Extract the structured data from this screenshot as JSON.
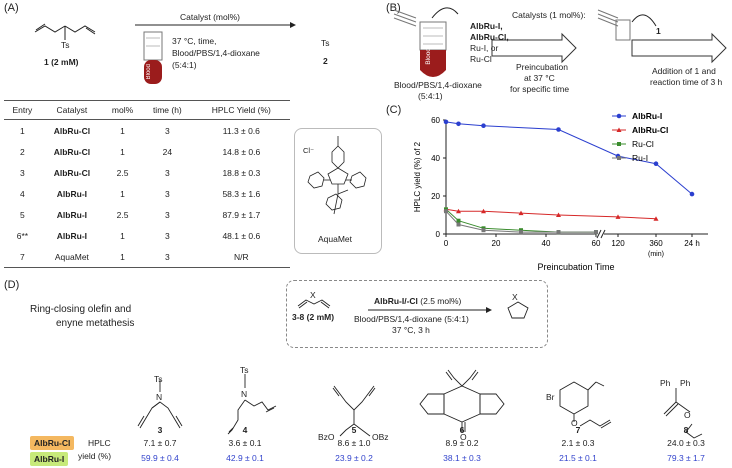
{
  "colors": {
    "albru_i": "#2b3fcf",
    "albru_cl": "#d62828",
    "ru_cl": "#3b8c2e",
    "ru_i": "#777777",
    "blood": "#9b1c1c",
    "badge_cl": "#f4b860",
    "badge_i": "#c7ea7a"
  },
  "panelA": {
    "label": "(A)",
    "substrate_label": "1 (2 mM)",
    "product_label": "2",
    "ts_label": "Ts",
    "arrow_top": "Catalyst (mol%)",
    "cond1": "37 °C, time,",
    "cond2": "Blood/PBS/1,4-dioxane",
    "cond3": "(5:4:1)",
    "blood_tube_text": "Blood",
    "table_headers": [
      "Entry",
      "Catalyst",
      "mol%",
      "time (h)",
      "HPLC Yield (%)"
    ],
    "rows": [
      [
        "1",
        "AlbRu-Cl",
        "1",
        "3",
        "11.3 ± 0.6"
      ],
      [
        "2",
        "AlbRu-Cl",
        "1",
        "24",
        "14.8 ± 0.6"
      ],
      [
        "3",
        "AlbRu-Cl",
        "2.5",
        "3",
        "18.8 ± 0.3"
      ],
      [
        "4",
        "AlbRu-I",
        "1",
        "3",
        "58.3 ± 1.6"
      ],
      [
        "5",
        "AlbRu-I",
        "2.5",
        "3",
        "87.9 ± 1.7"
      ],
      [
        "6**",
        "AlbRu-I",
        "1",
        "3",
        "48.1 ± 0.6"
      ],
      [
        "7",
        "AquaMet",
        "1",
        "3",
        "N/R"
      ]
    ],
    "aquamet_label": "AquaMet",
    "aquamet_cl": "Cl⁻"
  },
  "panelB": {
    "label": "(B)",
    "cat_line0": "Catalysts (1 mol%):",
    "cat_line1": "AlbRu-I,",
    "cat_line2": "AlbRu-Cl,",
    "cat_line3": "Ru-I, or",
    "cat_line4": "Ru-Cl",
    "blood_label": "Blood/PBS/1,4-dioxane",
    "blood_ratio": "(5:4:1)",
    "blood_tube_text": "Blood",
    "preinc1": "Preincubation",
    "preinc2": "at 37 °C",
    "preinc3": "for specific time",
    "sub_label": "1",
    "add1": "Addition of 1 and",
    "add2": "reaction time of 3 h"
  },
  "chart_data": {
    "type": "line",
    "label": "(C)",
    "ylabel": "HPLC yield (%) of 2",
    "xlabel": "Preincubation Time",
    "ylim": [
      0,
      60
    ],
    "yticks": [
      "0",
      "20",
      "40",
      "60"
    ],
    "xticks_left": [
      "0",
      "20",
      "40",
      "60"
    ],
    "xticks_right": [
      "120",
      "360",
      "24 h"
    ],
    "xtick_unit": "(min)",
    "legend_position": "top-right",
    "x": [
      "0",
      "5",
      "15",
      "30",
      "45",
      "60",
      "120",
      "360",
      "24 h"
    ],
    "series": [
      {
        "name": "AlbRu-I",
        "values": [
          59,
          58,
          57,
          null,
          55,
          null,
          41,
          37,
          21
        ]
      },
      {
        "name": "AlbRu-Cl",
        "values": [
          13,
          12,
          12,
          11,
          10,
          null,
          9,
          8,
          null
        ]
      },
      {
        "name": "Ru-Cl",
        "values": [
          13,
          7,
          3,
          2,
          1,
          1,
          null,
          null,
          null
        ]
      },
      {
        "name": "Ru-I",
        "values": [
          12,
          5,
          2,
          1,
          1,
          1,
          null,
          null,
          null
        ]
      }
    ]
  },
  "panelD": {
    "label": "(D)",
    "title1": "Ring-closing olefin and",
    "title2": "enyne metathesis",
    "scheme_sub": "3-8 (2 mM)",
    "scheme_x": "X",
    "scheme_cat": "AlbRu-I/-Cl",
    "scheme_cat_amt": "(2.5 mol%)",
    "scheme_cond1": "Blood/PBS/1,4-dioxane (5:4:1)",
    "scheme_cond2": "37 °C, 3 h",
    "row_label_cl": "AlbRu-Cl",
    "row_label_i": "AlbRu-I",
    "hplc1": "HPLC",
    "hplc2": "yield (%)",
    "compounds": [
      {
        "id": "3",
        "cl": "7.1 ± 0.7",
        "i": "59.9 ± 0.4"
      },
      {
        "id": "4",
        "cl": "3.6 ± 0.1",
        "i": "42.9 ± 0.1"
      },
      {
        "id": "5",
        "cl": "8.6 ± 1.0",
        "i": "23.9 ± 0.2"
      },
      {
        "id": "6",
        "cl": "8.9 ± 0.2",
        "i": "38.1 ± 0.3"
      },
      {
        "id": "7",
        "cl": "2.1 ± 0.3",
        "i": "21.5 ± 0.1"
      },
      {
        "id": "8",
        "cl": "24.0 ± 0.3",
        "i": "79.3 ± 1.7"
      }
    ],
    "struct_text": {
      "ts": "Ts",
      "n": "N",
      "bzo": "BzO",
      "obz": "OBz",
      "o": "O",
      "br": "Br",
      "ph1": "Ph",
      "ph2": "Ph"
    }
  }
}
